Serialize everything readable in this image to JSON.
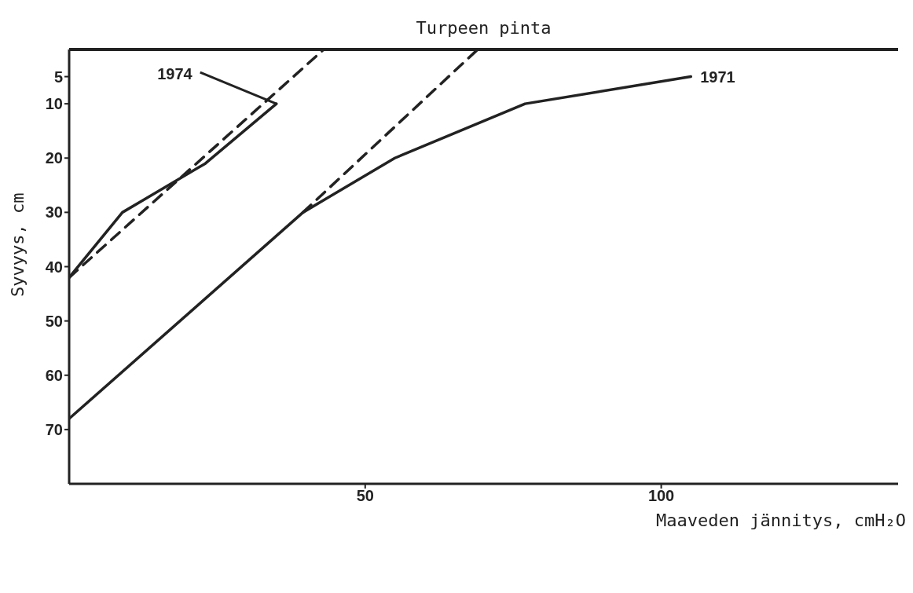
{
  "chart_data": {
    "type": "line",
    "xlabel": "Maaveden jännitys, cmH₂O",
    "ylabel": "Syvyys, cm",
    "xlim": [
      0,
      140
    ],
    "xticks": [
      50,
      100
    ],
    "ylim": [
      80,
      0
    ],
    "yticks": [
      5,
      10,
      20,
      30,
      40,
      50,
      60,
      70
    ],
    "marker": "none",
    "ref_lines": [
      {
        "axis": "y",
        "value": 0,
        "label": "Turpeen pinta",
        "color": "#222222"
      }
    ],
    "series": [
      {
        "name": "1974",
        "color": "#222222",
        "line_style": "solid",
        "x": [
          0,
          9,
          23,
          35
        ],
        "values": [
          42,
          30,
          21,
          10
        ]
      },
      {
        "name": "1971",
        "color": "#222222",
        "line_style": "solid",
        "x": [
          0,
          39.5,
          55,
          77,
          105
        ],
        "values": [
          68,
          30,
          20,
          10,
          5
        ]
      },
      {
        "type": "line",
        "color": "#222222",
        "line_style": "dashed",
        "x": [
          0,
          43
        ],
        "values": [
          42,
          0
        ]
      },
      {
        "type": "line",
        "color": "#222222",
        "line_style": "dashed",
        "x": [
          39.5,
          69
        ],
        "values": [
          30,
          0
        ]
      }
    ]
  }
}
